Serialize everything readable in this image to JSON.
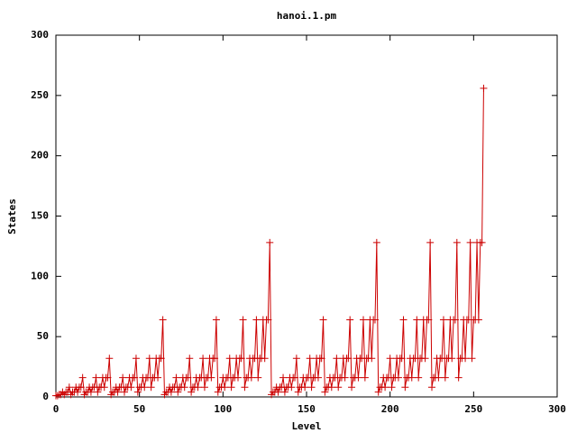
{
  "chart_data": {
    "type": "line",
    "title": "hanoi.1.pm",
    "x_label": "Level",
    "y_label": "States",
    "color": "#cc0000",
    "markers": true,
    "xlim": [
      0,
      300
    ],
    "xticks": [
      0,
      50,
      100,
      150,
      200,
      250,
      300
    ],
    "ylim": [
      0,
      300
    ],
    "yticks": [
      0,
      50,
      100,
      150,
      200,
      250,
      300
    ],
    "x": [
      0,
      1,
      2,
      3,
      4,
      5,
      6,
      7,
      8,
      9,
      10,
      11,
      12,
      13,
      14,
      15,
      16,
      17,
      18,
      19,
      20,
      21,
      22,
      23,
      24,
      25,
      26,
      27,
      28,
      29,
      30,
      31,
      32,
      33,
      34,
      35,
      36,
      37,
      38,
      39,
      40,
      41,
      42,
      43,
      44,
      45,
      46,
      47,
      48,
      49,
      50,
      51,
      52,
      53,
      54,
      55,
      56,
      57,
      58,
      59,
      60,
      61,
      62,
      63,
      64,
      65,
      66,
      67,
      68,
      69,
      70,
      71,
      72,
      73,
      74,
      75,
      76,
      77,
      78,
      79,
      80,
      81,
      82,
      83,
      84,
      85,
      86,
      87,
      88,
      89,
      90,
      91,
      92,
      93,
      94,
      95,
      96,
      97,
      98,
      99,
      100,
      101,
      102,
      103,
      104,
      105,
      106,
      107,
      108,
      109,
      110,
      111,
      112,
      113,
      114,
      115,
      116,
      117,
      118,
      119,
      120,
      121,
      122,
      123,
      124,
      125,
      126,
      127,
      128,
      129,
      130,
      131,
      132,
      133,
      134,
      135,
      136,
      137,
      138,
      139,
      140,
      141,
      142,
      143,
      144,
      145,
      146,
      147,
      148,
      149,
      150,
      151,
      152,
      153,
      154,
      155,
      156,
      157,
      158,
      159,
      160,
      161,
      162,
      163,
      164,
      165,
      166,
      167,
      168,
      169,
      170,
      171,
      172,
      173,
      174,
      175,
      176,
      177,
      178,
      179,
      180,
      181,
      182,
      183,
      184,
      185,
      186,
      187,
      188,
      189,
      190,
      191,
      192,
      193,
      194,
      195,
      196,
      197,
      198,
      199,
      200,
      201,
      202,
      203,
      204,
      205,
      206,
      207,
      208,
      209,
      210,
      211,
      212,
      213,
      214,
      215,
      216,
      217,
      218,
      219,
      220,
      221,
      222,
      223,
      224,
      225,
      226,
      227,
      228,
      229,
      230,
      231,
      232,
      233,
      234,
      235,
      236,
      237,
      238,
      239,
      240,
      241,
      242,
      243,
      244,
      245,
      246,
      247,
      248,
      249,
      250,
      251,
      252,
      253,
      254,
      255,
      256
    ],
    "values": [
      1,
      1,
      2,
      2,
      4,
      2,
      4,
      4,
      8,
      2,
      4,
      4,
      8,
      4,
      8,
      8,
      16,
      2,
      4,
      4,
      8,
      4,
      8,
      8,
      16,
      4,
      8,
      8,
      16,
      8,
      16,
      16,
      32,
      2,
      4,
      4,
      8,
      4,
      8,
      8,
      16,
      4,
      8,
      8,
      16,
      8,
      16,
      16,
      32,
      4,
      8,
      8,
      16,
      8,
      16,
      16,
      32,
      8,
      16,
      16,
      32,
      16,
      32,
      32,
      64,
      2,
      4,
      4,
      8,
      4,
      8,
      8,
      16,
      4,
      8,
      8,
      16,
      8,
      16,
      16,
      32,
      4,
      8,
      8,
      16,
      8,
      16,
      16,
      32,
      8,
      16,
      16,
      32,
      16,
      32,
      32,
      64,
      4,
      8,
      8,
      16,
      8,
      16,
      16,
      32,
      8,
      16,
      16,
      32,
      16,
      32,
      32,
      64,
      8,
      16,
      16,
      32,
      16,
      32,
      32,
      64,
      16,
      32,
      32,
      64,
      32,
      64,
      64,
      128,
      2,
      4,
      4,
      8,
      4,
      8,
      8,
      16,
      4,
      8,
      8,
      16,
      8,
      16,
      16,
      32,
      4,
      8,
      8,
      16,
      8,
      16,
      16,
      32,
      8,
      16,
      16,
      32,
      16,
      32,
      32,
      64,
      4,
      8,
      8,
      16,
      8,
      16,
      16,
      32,
      8,
      16,
      16,
      32,
      16,
      32,
      32,
      64,
      8,
      16,
      16,
      32,
      16,
      32,
      32,
      64,
      16,
      32,
      32,
      64,
      32,
      64,
      64,
      128,
      4,
      8,
      8,
      16,
      8,
      16,
      16,
      32,
      8,
      16,
      16,
      32,
      16,
      32,
      32,
      64,
      8,
      16,
      16,
      32,
      16,
      32,
      32,
      64,
      16,
      32,
      32,
      64,
      32,
      64,
      64,
      128,
      8,
      16,
      16,
      32,
      16,
      32,
      32,
      64,
      16,
      32,
      32,
      64,
      32,
      64,
      64,
      128,
      16,
      32,
      32,
      64,
      32,
      64,
      64,
      128,
      32,
      64,
      64,
      128,
      64,
      128,
      128,
      256
    ]
  }
}
